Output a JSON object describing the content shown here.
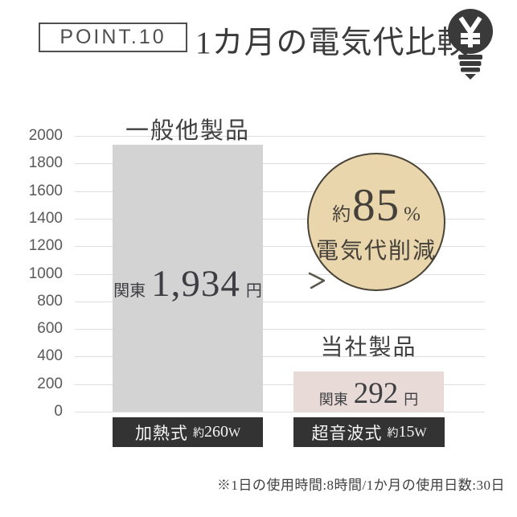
{
  "header": {
    "point_label": "POINT.10",
    "title": "1カ月の電気代比較"
  },
  "chart_data": {
    "type": "bar",
    "title": "1カ月の電気代比較",
    "xlabel": "",
    "ylabel": "",
    "ylim": [
      0,
      2000
    ],
    "yticks": [
      2000,
      1800,
      1600,
      1400,
      1200,
      1000,
      800,
      600,
      400,
      200,
      0
    ],
    "grid": true,
    "categories": [
      "一般他製品",
      "当社製品"
    ],
    "bars": [
      {
        "label": "一般他製品",
        "region": "関東",
        "value": 1934,
        "value_display": "1,934",
        "unit": "円",
        "spec": "加熱式",
        "watt_prefix": "約",
        "watt": "260",
        "watt_unit": "W",
        "color": "#d3d3d3"
      },
      {
        "label": "当社製品",
        "region": "関東",
        "value": 292,
        "value_display": "292",
        "unit": "円",
        "spec": "超音波式",
        "watt_prefix": "約",
        "watt": "15",
        "watt_unit": "W",
        "color": "#e8dbd7"
      }
    ],
    "annotation": {
      "approx": "約",
      "percent": "85",
      "percent_sign": "%",
      "caption": "電気代削減"
    }
  },
  "footnote": "※1日の使用時間:8時間/1か月の使用日数:30日",
  "colors": {
    "ink": "#3c3c3c",
    "axis_text": "#595959",
    "grid_line": "#dedede",
    "bar_competitor": "#d3d3d3",
    "bar_ours": "#e8dbd7",
    "wattage_box_bg": "#333333",
    "wattage_box_text": "#f5f5f5",
    "badge_fill": "#e9d6ad",
    "badge_border": "#4a4437",
    "badge_text": "#45413a"
  }
}
